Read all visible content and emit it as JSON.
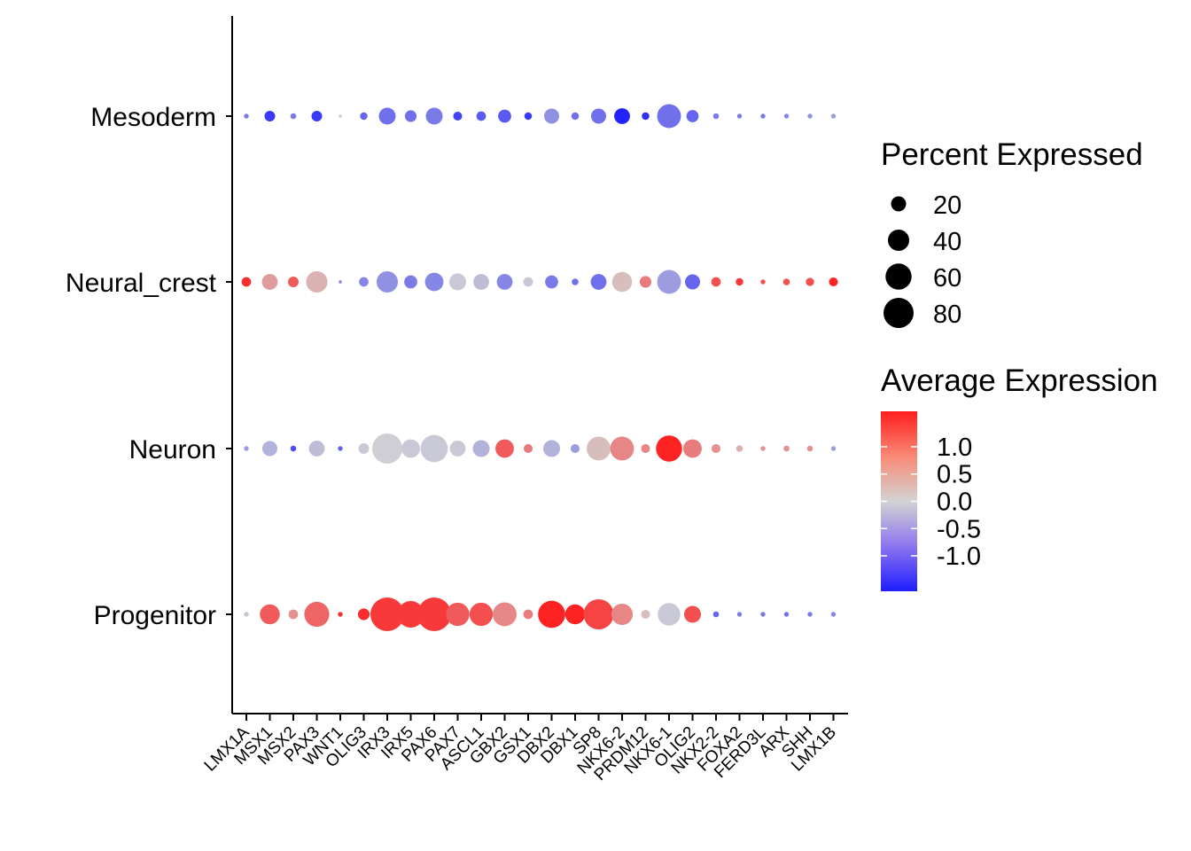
{
  "chart_data": {
    "type": "dotplot",
    "genes": [
      "LMX1A",
      "MSX1",
      "MSX2",
      "PAX3",
      "WNT1",
      "OLIG3",
      "IRX3",
      "IRX5",
      "PAX6",
      "PAX7",
      "ASCL1",
      "GBX2",
      "GSX1",
      "DBX2",
      "DBX1",
      "SP8",
      "NKX6-2",
      "PRDM12",
      "NKX6-1",
      "OLIG2",
      "NKX2-2",
      "FOXA2",
      "FERD3L",
      "ARX",
      "SHH",
      "LMX1B"
    ],
    "groups": [
      "Mesoderm",
      "Neural_crest",
      "Neuron",
      "Progenitor"
    ],
    "series": [
      {
        "group": "Mesoderm",
        "pct": [
          2,
          10,
          3,
          10,
          1,
          5,
          25,
          12,
          25,
          7,
          8,
          15,
          5,
          20,
          5,
          20,
          22,
          5,
          50,
          13,
          3,
          2,
          2,
          2,
          2,
          2
        ],
        "avg": [
          -0.8,
          -1.4,
          -0.8,
          -1.4,
          0.0,
          -1.0,
          -0.9,
          -0.9,
          -0.8,
          -1.3,
          -1.1,
          -1.1,
          -1.4,
          -0.6,
          -0.9,
          -0.9,
          -1.6,
          -1.5,
          -0.9,
          -1.0,
          -0.8,
          -0.8,
          -0.8,
          -0.7,
          -0.6,
          -0.5
        ]
      },
      {
        "group": "Neural_crest",
        "pct": [
          8,
          22,
          10,
          40,
          1,
          8,
          40,
          15,
          30,
          25,
          22,
          22,
          8,
          15,
          4,
          22,
          35,
          12,
          50,
          20,
          8,
          5,
          2,
          4,
          6,
          7
        ],
        "avg": [
          1.5,
          0.5,
          1.1,
          0.3,
          -0.6,
          -0.7,
          -0.6,
          -0.8,
          -0.7,
          -0.1,
          -0.2,
          -0.7,
          -0.1,
          -0.8,
          -0.9,
          -0.9,
          0.2,
          0.8,
          -0.5,
          -1.0,
          1.2,
          1.4,
          1.2,
          1.2,
          1.2,
          1.6
        ]
      },
      {
        "group": "Neuron",
        "pct": [
          2,
          20,
          3,
          22,
          2,
          10,
          80,
          30,
          65,
          22,
          25,
          30,
          7,
          25,
          7,
          50,
          50,
          7,
          60,
          30,
          7,
          4,
          2,
          3,
          3,
          2
        ],
        "avg": [
          -0.5,
          -0.3,
          -1.2,
          -0.2,
          -1.0,
          -0.1,
          -0.05,
          -0.1,
          -0.1,
          -0.1,
          -0.3,
          1.1,
          0.8,
          -0.3,
          -0.5,
          0.2,
          0.7,
          0.7,
          1.6,
          0.8,
          0.6,
          0.3,
          0.6,
          0.6,
          0.6,
          -0.5
        ]
      },
      {
        "group": "Progenitor",
        "pct": [
          2,
          35,
          8,
          55,
          2,
          12,
          100,
          62,
          100,
          48,
          48,
          50,
          8,
          65,
          35,
          80,
          40,
          7,
          45,
          25,
          3,
          2,
          2,
          2,
          2,
          2
        ],
        "avg": [
          -0.1,
          1.1,
          0.6,
          1.0,
          1.5,
          1.5,
          1.4,
          1.4,
          1.4,
          1.1,
          1.2,
          0.7,
          0.8,
          1.6,
          1.6,
          1.3,
          0.7,
          0.2,
          -0.1,
          1.2,
          -1.0,
          -0.8,
          -0.8,
          -0.9,
          -0.8,
          -0.7
        ]
      }
    ],
    "size_legend": {
      "title": "Percent Expressed",
      "breaks": [
        20,
        40,
        60,
        80
      ],
      "labels": [
        "20",
        "40",
        "60",
        "80"
      ]
    },
    "color_legend": {
      "title": "Average Expression",
      "breaks": [
        1.0,
        0.5,
        0.0,
        -0.5,
        -1.0
      ],
      "labels": [
        "1.0",
        "0.5",
        "0.0",
        "-0.5",
        "-1.0"
      ],
      "range": [
        -1.65,
        1.65
      ],
      "low_color": "#1e1eff",
      "mid_color": "#d3d3d3",
      "high_color": "#ff1e1e"
    },
    "max_percent": 100
  }
}
